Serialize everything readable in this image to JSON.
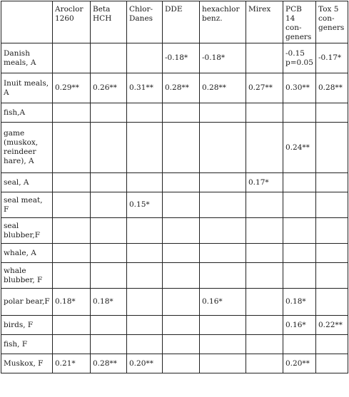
{
  "table": {
    "headers": [
      "",
      "Aroclor 1260",
      "Beta HCH",
      "Chlor-Danes",
      "DDE",
      "hexachlor benz.",
      "Mirex",
      "PCB 14 con-geners",
      "Tox 5 con-geners"
    ],
    "rows": [
      {
        "label": "Danish meals, A",
        "cells": [
          "",
          "",
          "",
          "-0.18*",
          "-0.18*",
          "",
          "-0.15\np=0.05",
          "-0.17*"
        ]
      },
      {
        "label": "Inuit meals, A",
        "cells": [
          "0.29**",
          "0.26**",
          "0.31**",
          "0.28**",
          "0.28**",
          "0.27**",
          "0.30**",
          "0.28**"
        ]
      },
      {
        "label": "fish,A",
        "cells": [
          "",
          "",
          "",
          "",
          "",
          "",
          "",
          ""
        ]
      },
      {
        "label": "game (muskox, reindeer hare), A",
        "cells": [
          "",
          "",
          "",
          "",
          "",
          "",
          "0.24**",
          ""
        ]
      },
      {
        "label": "seal, A",
        "cells": [
          "",
          "",
          "",
          "",
          "",
          "0.17*",
          "",
          ""
        ]
      },
      {
        "label": "seal meat, F",
        "cells": [
          "",
          "",
          "0.15*",
          "",
          "",
          "",
          "",
          ""
        ]
      },
      {
        "label": "seal blubber,F",
        "cells": [
          "",
          "",
          "",
          "",
          "",
          "",
          "",
          ""
        ]
      },
      {
        "label": "whale, A",
        "cells": [
          "",
          "",
          "",
          "",
          "",
          "",
          "",
          ""
        ]
      },
      {
        "label": "whale blubber, F",
        "cells": [
          "",
          "",
          "",
          "",
          "",
          "",
          "",
          ""
        ]
      },
      {
        "label": "polar bear,F",
        "cells": [
          "0.18*",
          "0.18*",
          "",
          "",
          "0.16*",
          "",
          "0.18*",
          ""
        ]
      },
      {
        "label": "birds, F",
        "cells": [
          "",
          "",
          "",
          "",
          "",
          "",
          "0.16*",
          "0.22**"
        ]
      },
      {
        "label": "fish, F",
        "cells": [
          "",
          "",
          "",
          "",
          "",
          "",
          "",
          ""
        ]
      },
      {
        "label": "Muskox, F",
        "cells": [
          "0.21*",
          "0.28**",
          "0.20**",
          "",
          "",
          "",
          "0.20**",
          ""
        ]
      }
    ]
  }
}
